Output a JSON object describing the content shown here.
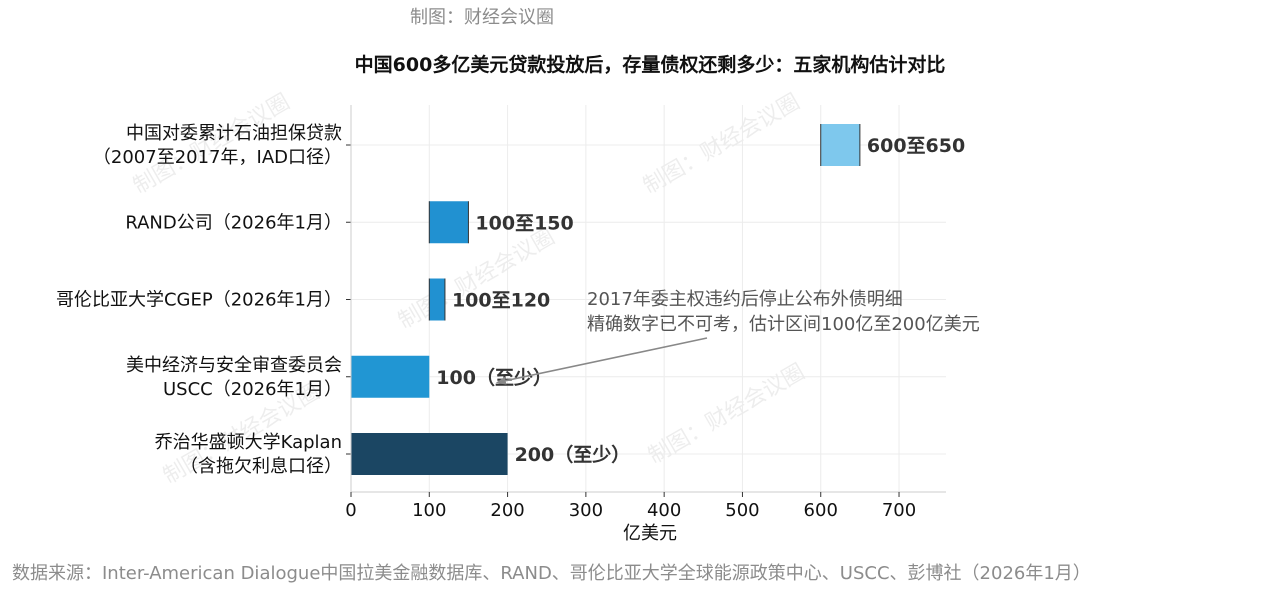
{
  "credit": "制图：财经会议圈",
  "watermark": "制图：财经会议圈",
  "source": "数据来源：Inter-American Dialogue中国拉美金融数据库、RAND、哥伦比亚大学全球能源政策中心、USCC、彭博社（2026年1月）",
  "chart_data": {
    "type": "bar",
    "orientation": "horizontal",
    "title": "中国600多亿美元贷款投放后，存量债权还剩多少：五家机构估计对比",
    "xlabel": "亿美元",
    "ylabel": "",
    "xlim": [
      0,
      760
    ],
    "xticks": [
      0,
      100,
      200,
      300,
      400,
      500,
      600,
      700
    ],
    "grid": true,
    "bars": [
      {
        "label": [
          "中国对委累计石油担保贷款",
          "（2007至2017年，IAD口径）"
        ],
        "low": 600,
        "high": 650,
        "value_label": "600至650",
        "color": "#7ec8ed"
      },
      {
        "label": [
          "RAND公司（2026年1月）"
        ],
        "low": 100,
        "high": 150,
        "value_label": "100至150",
        "color": "#2191d1"
      },
      {
        "label": [
          "哥伦比亚大学CGEP（2026年1月）"
        ],
        "low": 100,
        "high": 120,
        "value_label": "100至120",
        "color": "#2191d1"
      },
      {
        "label": [
          "美中经济与安全审查委员会",
          "USCC（2026年1月）"
        ],
        "low": 0,
        "high": 100,
        "value_label": "100（至少）",
        "color": "#2196d3"
      },
      {
        "label": [
          "乔治华盛顿大学Kaplan",
          "（含拖欠利息口径）"
        ],
        "low": 0,
        "high": 200,
        "value_label": "200（至少）",
        "color": "#1b4663"
      }
    ],
    "annotation": {
      "lines": [
        "2017年委主权违约后停止公布外债明细",
        "精确数字已不可考，估计区间100亿至200亿美元"
      ],
      "arrow_target": {
        "bar_index": 2,
        "x": 185
      }
    }
  }
}
